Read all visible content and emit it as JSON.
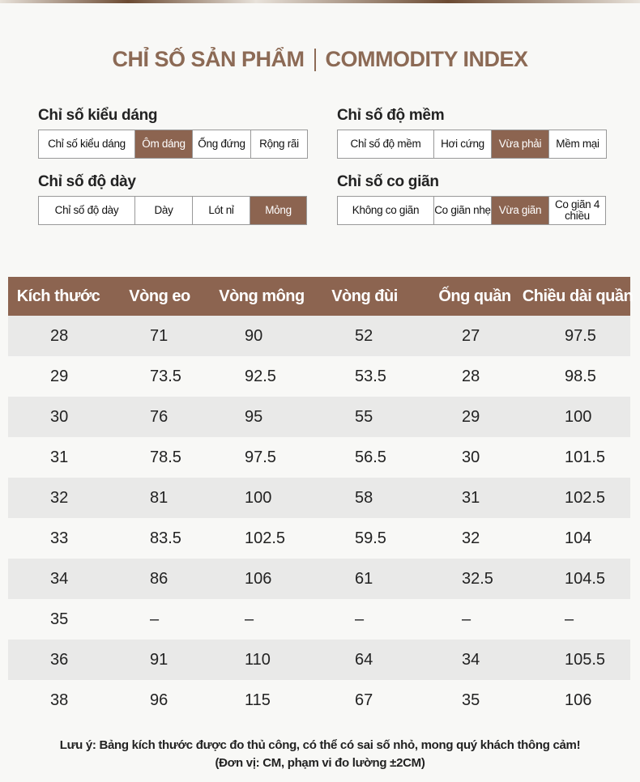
{
  "header": {
    "title": "CHỈ SỐ SẢN PHẨM",
    "subtitle": "COMMODITY INDEX"
  },
  "indices": [
    {
      "title": "Chỉ số kiểu dáng",
      "cells": [
        "Chỉ số kiểu dáng",
        "Ôm dáng",
        "Ống đứng",
        "Rộng rãi"
      ],
      "selected": 1
    },
    {
      "title": "Chỉ số độ mềm",
      "cells": [
        "Chỉ số độ mềm",
        "Hơi cứng",
        "Vừa phải",
        "Mềm mại"
      ],
      "selected": 2
    },
    {
      "title": "Chỉ số độ dày",
      "cells": [
        "Chỉ số độ dày",
        "Dày",
        "Lót nỉ",
        "Mỏng"
      ],
      "selected": 3
    },
    {
      "title": "Chỉ số co giãn",
      "cells": [
        "Không co giãn",
        "Co giãn nhẹ",
        "Vừa giãn",
        "Co giãn 4 chiều"
      ],
      "selected": 2
    }
  ],
  "table": {
    "columns": [
      "Kích thước",
      "Vòng eo",
      "Vòng mông",
      "Vòng đùi",
      "Ống quần",
      "Chiều dài quần"
    ],
    "rows": [
      [
        "28",
        "71",
        "90",
        "52",
        "27",
        "97.5"
      ],
      [
        "29",
        "73.5",
        "92.5",
        "53.5",
        "28",
        "98.5"
      ],
      [
        "30",
        "76",
        "95",
        "55",
        "29",
        "100"
      ],
      [
        "31",
        "78.5",
        "97.5",
        "56.5",
        "30",
        "101.5"
      ],
      [
        "32",
        "81",
        "100",
        "58",
        "31",
        "102.5"
      ],
      [
        "33",
        "83.5",
        "102.5",
        "59.5",
        "32",
        "104"
      ],
      [
        "34",
        "86",
        "106",
        "61",
        "32.5",
        "104.5"
      ],
      [
        "35",
        "–",
        "–",
        "–",
        "–",
        "–"
      ],
      [
        "36",
        "91",
        "110",
        "64",
        "34",
        "105.5"
      ],
      [
        "38",
        "96",
        "115",
        "67",
        "35",
        "106"
      ]
    ]
  },
  "notes": [
    "Lưu ý: Bảng kích thước được đo thủ công, có thể có sai số nhỏ, mong quý khách thông cảm!",
    "(Đơn vị: CM, phạm vi đo lường ±2CM)"
  ]
}
